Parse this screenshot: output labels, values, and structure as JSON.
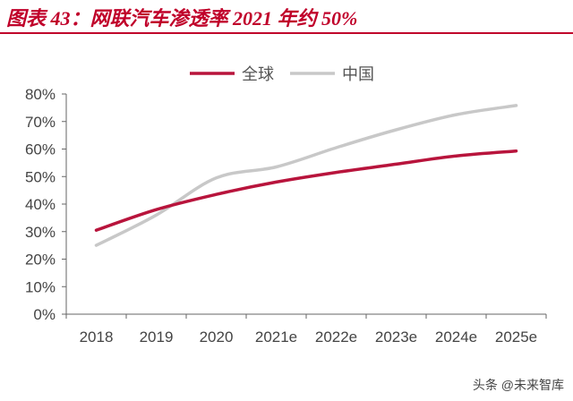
{
  "figure": {
    "title": "图表 43：网联汽车渗透率 2021 年约 50%"
  },
  "watermark": "头条 @未来智库",
  "colors": {
    "title": "#c0002a",
    "global": "#b8143c",
    "china": "#c8c8c8",
    "axis": "#666666"
  },
  "chart_data": {
    "type": "line",
    "title": "",
    "xlabel": "",
    "ylabel": "",
    "categories": [
      "2018",
      "2019",
      "2020",
      "2021e",
      "2022e",
      "2023e",
      "2024e",
      "2025e"
    ],
    "ylim": [
      0,
      80
    ],
    "yticks": [
      "0%",
      "10%",
      "20%",
      "30%",
      "40%",
      "50%",
      "60%",
      "70%",
      "80%"
    ],
    "grid": false,
    "legend": "top",
    "series": [
      {
        "name": "全球",
        "color": "#b8143c",
        "values": [
          30.5,
          38,
          43.5,
          48,
          51.5,
          54.5,
          57.5,
          59.3
        ]
      },
      {
        "name": "中国",
        "color": "#c8c8c8",
        "values": [
          25,
          36,
          49.5,
          53.5,
          60.5,
          67,
          72.5,
          75.8
        ]
      }
    ]
  }
}
